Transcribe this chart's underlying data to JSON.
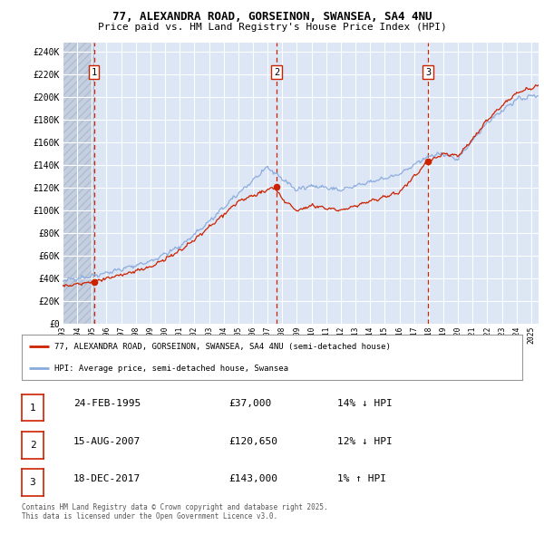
{
  "title1": "77, ALEXANDRA ROAD, GORSEINON, SWANSEA, SA4 4NU",
  "title2": "Price paid vs. HM Land Registry's House Price Index (HPI)",
  "ylabel_ticks": [
    "£0",
    "£20K",
    "£40K",
    "£60K",
    "£80K",
    "£100K",
    "£120K",
    "£140K",
    "£160K",
    "£180K",
    "£200K",
    "£220K",
    "£240K"
  ],
  "ytick_values": [
    0,
    20000,
    40000,
    60000,
    80000,
    100000,
    120000,
    140000,
    160000,
    180000,
    200000,
    220000,
    240000
  ],
  "xlim_start": 1993.0,
  "xlim_end": 2025.5,
  "ylim_min": 0,
  "ylim_max": 248000,
  "bg_color": "#dce6f5",
  "hatch_color": "#c4cfe0",
  "grid_color": "#ffffff",
  "hpi_line_color": "#88aadd",
  "price_line_color": "#cc2200",
  "vline_color": "#cc2200",
  "legend_label_price": "77, ALEXANDRA ROAD, GORSEINON, SWANSEA, SA4 4NU (semi-detached house)",
  "legend_label_hpi": "HPI: Average price, semi-detached house, Swansea",
  "transactions": [
    {
      "num": 1,
      "date": 1995.15,
      "price": 37000,
      "label": "1"
    },
    {
      "num": 2,
      "date": 2007.62,
      "price": 120650,
      "label": "2"
    },
    {
      "num": 3,
      "date": 2017.96,
      "price": 143000,
      "label": "3"
    }
  ],
  "table_rows": [
    {
      "num": "1",
      "date": "24-FEB-1995",
      "price": "£37,000",
      "hpi": "14% ↓ HPI"
    },
    {
      "num": "2",
      "date": "15-AUG-2007",
      "price": "£120,650",
      "hpi": "12% ↓ HPI"
    },
    {
      "num": "3",
      "date": "18-DEC-2017",
      "price": "£143,000",
      "hpi": "1% ↑ HPI"
    }
  ],
  "footnote": "Contains HM Land Registry data © Crown copyright and database right 2025.\nThis data is licensed under the Open Government Licence v3.0.",
  "xtick_years": [
    1993,
    1994,
    1995,
    1996,
    1997,
    1998,
    1999,
    2000,
    2001,
    2002,
    2003,
    2004,
    2005,
    2006,
    2007,
    2008,
    2009,
    2010,
    2011,
    2012,
    2013,
    2014,
    2015,
    2016,
    2017,
    2018,
    2019,
    2020,
    2021,
    2022,
    2023,
    2024,
    2025
  ]
}
